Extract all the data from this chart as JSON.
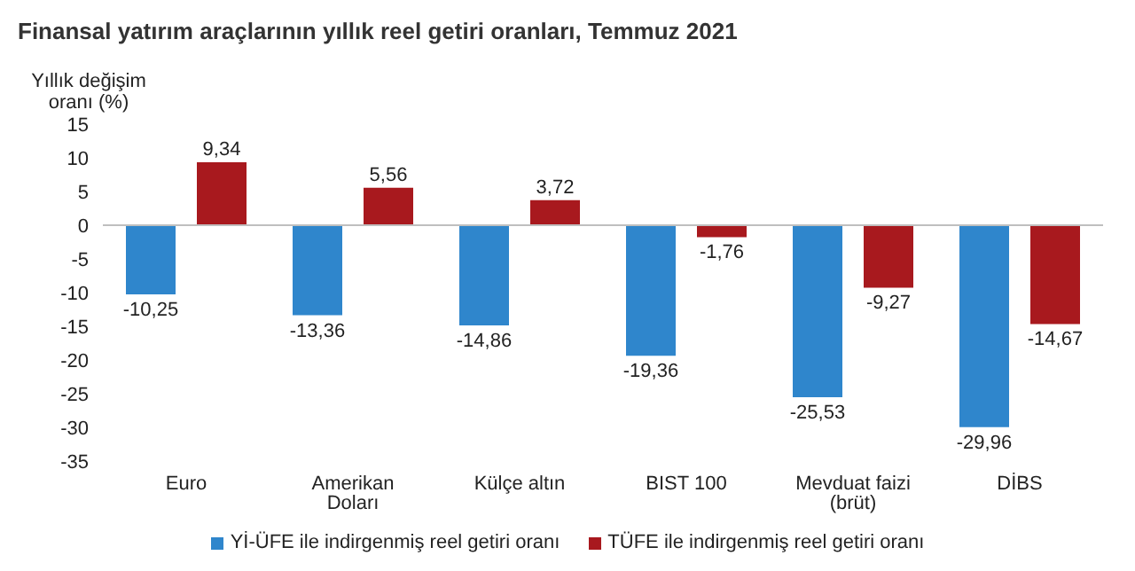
{
  "chart_data": {
    "type": "bar",
    "title": "Finansal yatırım araçlarının yıllık reel getiri oranları, Temmuz 2021",
    "ylabel": "Yıllık değişim oranı (%)",
    "categories": [
      "Euro",
      "Amerikan Doları",
      "Külçe altın",
      "BIST 100",
      "Mevduat faizi (brüt)",
      "DİBS"
    ],
    "series": [
      {
        "name": "Yİ-ÜFE ile indirgenmiş reel getiri oranı",
        "color": "#2f86cc",
        "values": [
          -10.25,
          -13.36,
          -14.86,
          -19.36,
          -25.53,
          -29.96
        ],
        "value_labels": [
          "-10,25",
          "-13,36",
          "-14,86",
          "-19,36",
          "-25,53",
          "-29,96"
        ]
      },
      {
        "name": "TÜFE ile indirgenmiş reel getiri oranı",
        "color": "#a8191e",
        "values": [
          9.34,
          5.56,
          3.72,
          -1.76,
          -9.27,
          -14.67
        ],
        "value_labels": [
          "9,34",
          "5,56",
          "3,72",
          "-1,76",
          "-9,27",
          "-14,67"
        ]
      }
    ],
    "ylim": [
      -35,
      15
    ],
    "yticks": [
      -35,
      -30,
      -25,
      -20,
      -15,
      -10,
      -5,
      0,
      5,
      10,
      15
    ],
    "legend": "bottom",
    "ref_lines": [
      {
        "axis": "y",
        "value": 0,
        "color": "#bfbfbf"
      }
    ]
  }
}
